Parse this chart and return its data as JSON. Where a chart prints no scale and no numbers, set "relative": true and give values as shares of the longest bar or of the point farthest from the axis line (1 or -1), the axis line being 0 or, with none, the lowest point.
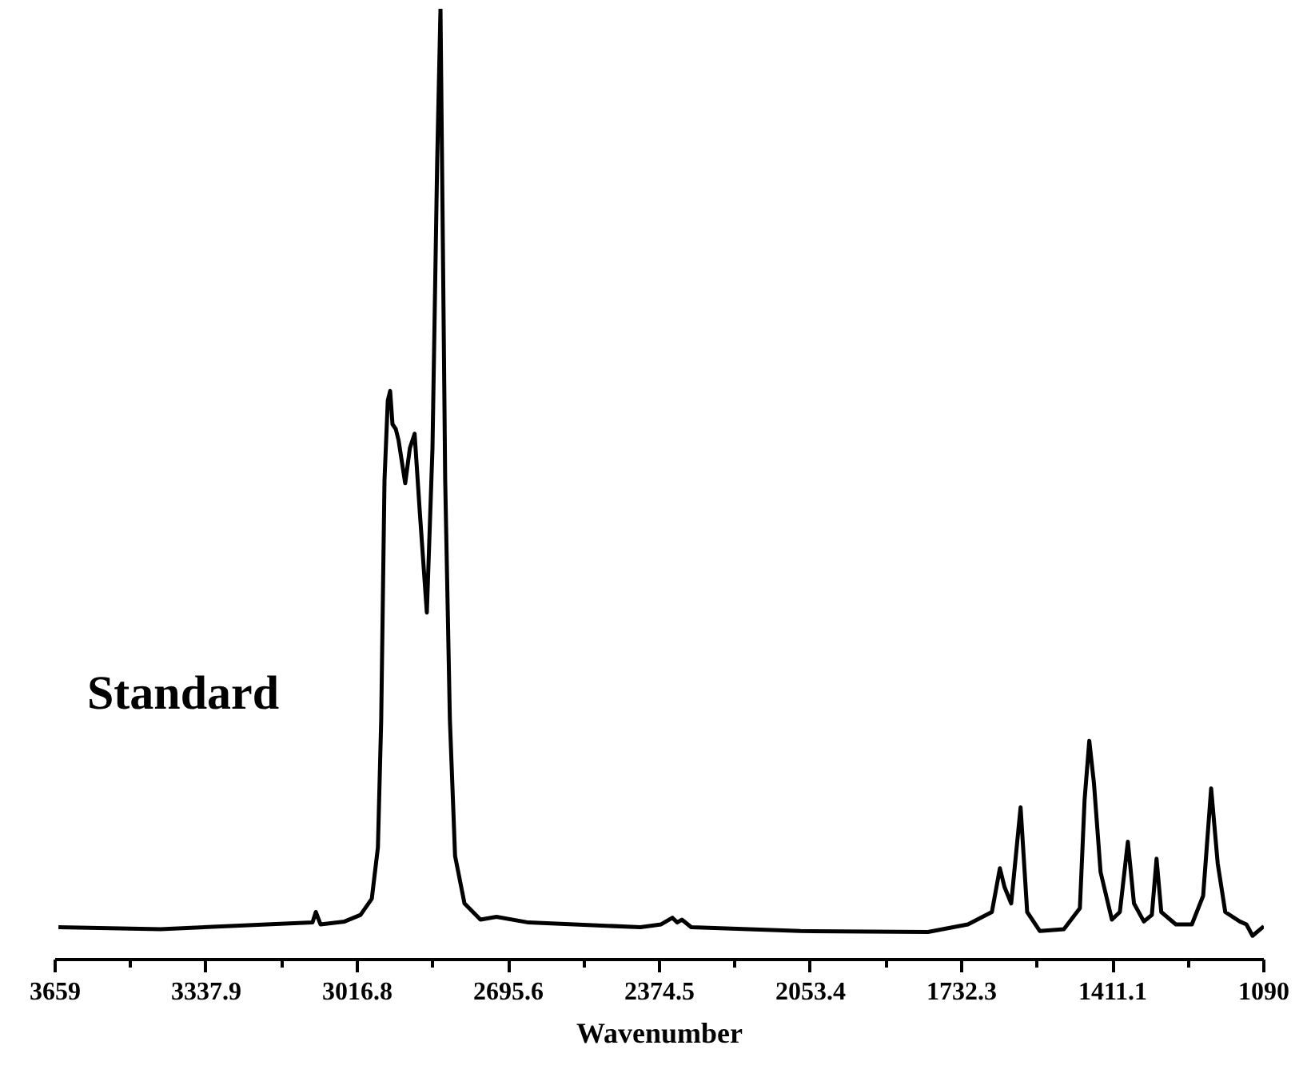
{
  "chart_data": {
    "type": "line",
    "relative": true,
    "xlabel": "Wavenumber",
    "annotations": [
      "Standard"
    ],
    "xlim": [
      3659,
      1090
    ],
    "xticks": [
      3659,
      {
        "value": 3498.45,
        "label": null
      },
      3337.9,
      {
        "value": 3177.35,
        "label": null
      },
      3016.8,
      {
        "value": 2856.2,
        "label": null
      },
      2695.6,
      {
        "value": 2535.05,
        "label": null
      },
      2374.5,
      {
        "value": 2213.95,
        "label": null
      },
      2053.4,
      {
        "value": 1892.85,
        "label": null
      },
      1732.3,
      {
        "value": 1571.7,
        "label": null
      },
      1411.1,
      {
        "value": 1250.55,
        "label": null
      },
      1090
    ],
    "marker": "none",
    "line_style": "solid",
    "series": [
      {
        "color": "#000000",
        "x": [
          3652,
          3435,
          3112,
          3105,
          3095,
          3044,
          3010,
          2986,
          2973,
          2966,
          2959,
          2952,
          2947,
          2942,
          2935,
          2929,
          2915,
          2905,
          2895,
          2884,
          2869,
          2857,
          2847,
          2840,
          2835,
          2830,
          2820,
          2809,
          2789,
          2755,
          2721,
          2653,
          2415,
          2371,
          2347,
          2337,
          2327,
          2307,
          2075,
          1804,
          1719,
          1668,
          1651,
          1641,
          1627,
          1607,
          1593,
          1566,
          1515,
          1481,
          1471,
          1461,
          1451,
          1437,
          1413,
          1396,
          1379,
          1366,
          1345,
          1328,
          1318,
          1308,
          1277,
          1243,
          1219,
          1202,
          1188,
          1172,
          1141,
          1127,
          1114,
          1090
        ],
        "values": [
          0.034,
          0.032,
          0.039,
          0.05,
          0.037,
          0.04,
          0.047,
          0.064,
          0.118,
          0.252,
          0.504,
          0.588,
          0.598,
          0.563,
          0.558,
          0.546,
          0.501,
          0.538,
          0.553,
          0.471,
          0.365,
          0.538,
          0.84,
          1.0,
          0.756,
          0.504,
          0.252,
          0.109,
          0.059,
          0.042,
          0.045,
          0.039,
          0.034,
          0.037,
          0.044,
          0.039,
          0.042,
          0.034,
          0.03,
          0.029,
          0.037,
          0.05,
          0.096,
          0.076,
          0.059,
          0.16,
          0.05,
          0.03,
          0.032,
          0.054,
          0.168,
          0.23,
          0.185,
          0.092,
          0.042,
          0.05,
          0.124,
          0.059,
          0.04,
          0.047,
          0.106,
          0.05,
          0.037,
          0.037,
          0.067,
          0.18,
          0.101,
          0.05,
          0.04,
          0.037,
          0.025,
          0.035
        ]
      }
    ]
  }
}
